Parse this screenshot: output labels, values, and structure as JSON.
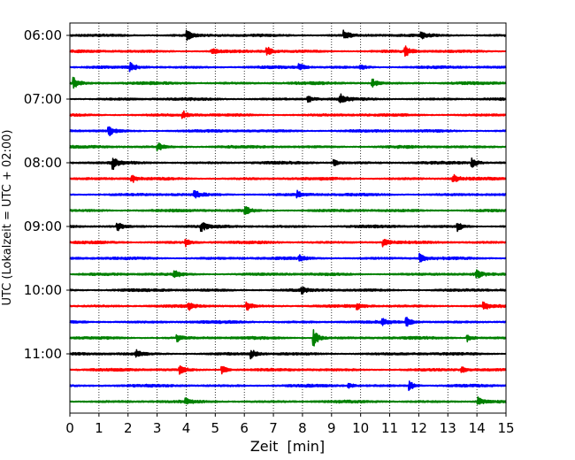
{
  "chart_data": {
    "type": "line",
    "title": "",
    "xlabel": "Zeit  [min]",
    "ylabel": "UTC (Lokalzeit = UTC + 02:00)",
    "xlim": [
      0,
      15
    ],
    "x_ticks": [
      "0",
      "1",
      "2",
      "3",
      "4",
      "5",
      "6",
      "7",
      "8",
      "9",
      "10",
      "11",
      "12",
      "13",
      "14",
      "15"
    ],
    "y_tick_labels": [
      "06:00",
      "07:00",
      "08:00",
      "09:00",
      "10:00",
      "11:00"
    ],
    "grid": "vertical-dotted",
    "rows_per_hour": 4,
    "trace_interval_min": 15,
    "colors": [
      "#000000",
      "#ff0000",
      "#0000ff",
      "#008000"
    ],
    "traces": [
      {
        "start": "06:00",
        "color": "#000000",
        "events": [
          {
            "t": 4.05,
            "a": 1.0
          },
          {
            "t": 9.45,
            "a": 1.1
          },
          {
            "t": 12.1,
            "a": 0.6
          }
        ]
      },
      {
        "start": "06:15",
        "color": "#ff0000",
        "events": [
          {
            "t": 4.9,
            "a": 0.6
          },
          {
            "t": 6.8,
            "a": 0.9
          },
          {
            "t": 11.55,
            "a": 1.1
          }
        ]
      },
      {
        "start": "06:30",
        "color": "#0000ff",
        "events": [
          {
            "t": 2.1,
            "a": 0.9
          },
          {
            "t": 7.9,
            "a": 0.7
          },
          {
            "t": 10.0,
            "a": 0.6
          }
        ]
      },
      {
        "start": "06:45",
        "color": "#008000",
        "events": [
          {
            "t": 0.15,
            "a": 1.2
          },
          {
            "t": 10.4,
            "a": 1.0
          }
        ]
      },
      {
        "start": "07:00",
        "color": "#000000",
        "events": [
          {
            "t": 8.2,
            "a": 0.8
          },
          {
            "t": 9.3,
            "a": 1.0
          }
        ]
      },
      {
        "start": "07:15",
        "color": "#ff0000",
        "events": [
          {
            "t": 3.9,
            "a": 0.9
          }
        ]
      },
      {
        "start": "07:30",
        "color": "#0000ff",
        "events": [
          {
            "t": 1.35,
            "a": 1.0
          }
        ]
      },
      {
        "start": "07:45",
        "color": "#008000",
        "events": [
          {
            "t": 3.05,
            "a": 0.8
          }
        ]
      },
      {
        "start": "08:00",
        "color": "#000000",
        "events": [
          {
            "t": 1.5,
            "a": 1.2
          },
          {
            "t": 9.1,
            "a": 0.6
          },
          {
            "t": 13.85,
            "a": 1.1
          }
        ]
      },
      {
        "start": "08:15",
        "color": "#ff0000",
        "events": [
          {
            "t": 2.15,
            "a": 0.8
          },
          {
            "t": 13.2,
            "a": 0.9
          }
        ]
      },
      {
        "start": "08:30",
        "color": "#0000ff",
        "events": [
          {
            "t": 4.3,
            "a": 0.8
          },
          {
            "t": 7.85,
            "a": 0.7
          }
        ]
      },
      {
        "start": "08:45",
        "color": "#008000",
        "events": [
          {
            "t": 6.05,
            "a": 1.0
          }
        ]
      },
      {
        "start": "09:00",
        "color": "#000000",
        "events": [
          {
            "t": 1.65,
            "a": 0.9
          },
          {
            "t": 4.55,
            "a": 0.8
          },
          {
            "t": 13.35,
            "a": 1.0
          }
        ]
      },
      {
        "start": "09:15",
        "color": "#ff0000",
        "events": [
          {
            "t": 4.0,
            "a": 0.8
          },
          {
            "t": 10.8,
            "a": 0.8
          }
        ]
      },
      {
        "start": "09:30",
        "color": "#0000ff",
        "events": [
          {
            "t": 7.9,
            "a": 0.6
          },
          {
            "t": 12.05,
            "a": 0.9
          }
        ]
      },
      {
        "start": "09:45",
        "color": "#008000",
        "events": [
          {
            "t": 3.6,
            "a": 0.9
          },
          {
            "t": 14.0,
            "a": 0.8
          }
        ]
      },
      {
        "start": "10:00",
        "color": "#000000",
        "events": [
          {
            "t": 8.0,
            "a": 0.6
          }
        ]
      },
      {
        "start": "10:15",
        "color": "#ff0000",
        "events": [
          {
            "t": 4.1,
            "a": 0.7
          },
          {
            "t": 6.1,
            "a": 0.9
          },
          {
            "t": 9.9,
            "a": 0.6
          },
          {
            "t": 14.25,
            "a": 0.8
          }
        ]
      },
      {
        "start": "10:30",
        "color": "#0000ff",
        "events": [
          {
            "t": 11.6,
            "a": 0.9
          },
          {
            "t": 10.75,
            "a": 0.6
          }
        ]
      },
      {
        "start": "10:45",
        "color": "#008000",
        "events": [
          {
            "t": 8.4,
            "a": 1.9
          },
          {
            "t": 3.7,
            "a": 0.7
          },
          {
            "t": 13.7,
            "a": 0.8
          }
        ]
      },
      {
        "start": "11:00",
        "color": "#000000",
        "events": [
          {
            "t": 2.3,
            "a": 0.7
          },
          {
            "t": 6.25,
            "a": 0.9
          }
        ]
      },
      {
        "start": "11:15",
        "color": "#ff0000",
        "events": [
          {
            "t": 3.8,
            "a": 0.9
          },
          {
            "t": 5.25,
            "a": 0.9
          },
          {
            "t": 13.5,
            "a": 0.6
          }
        ]
      },
      {
        "start": "11:30",
        "color": "#0000ff",
        "events": [
          {
            "t": 11.7,
            "a": 1.0
          },
          {
            "t": 9.6,
            "a": 0.5
          }
        ]
      },
      {
        "start": "11:45",
        "color": "#008000",
        "events": [
          {
            "t": 14.05,
            "a": 0.9
          },
          {
            "t": 4.0,
            "a": 0.5
          }
        ]
      }
    ]
  }
}
